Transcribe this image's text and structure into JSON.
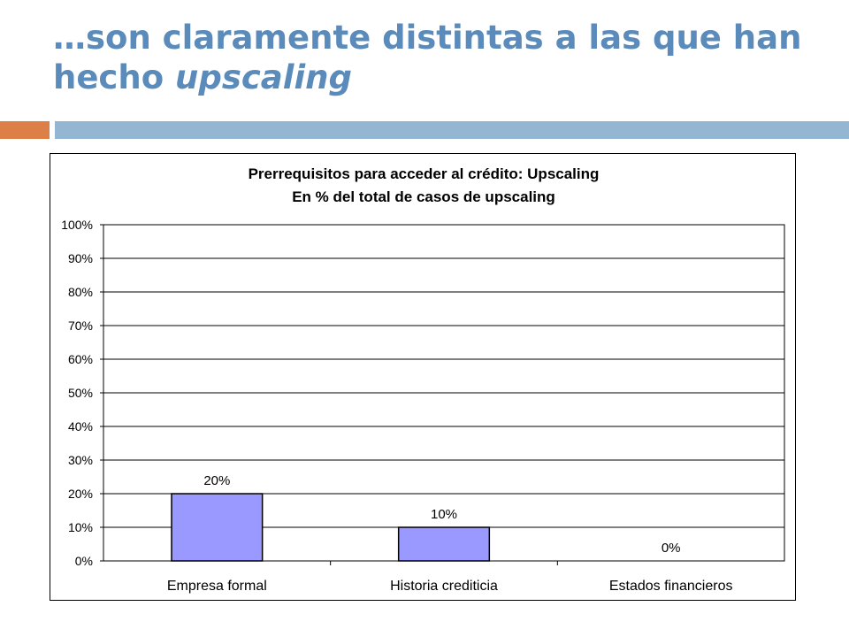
{
  "slide": {
    "title_main": "…son claramente distintas a las que han hecho ",
    "title_em": "upscaling"
  },
  "colors": {
    "title": "#5a8bba",
    "accent_orange": "#dd8047",
    "accent_blue": "#94b6d2",
    "bar_fill": "#9999ff"
  },
  "chart_data": {
    "type": "bar",
    "title": "Prerrequisitos para acceder al crédito: Upscaling",
    "subtitle": "En % del total de casos de upscaling",
    "categories": [
      "Empresa formal",
      "Historia crediticia",
      "Estados financieros"
    ],
    "values": [
      20,
      10,
      0
    ],
    "data_labels": [
      "20%",
      "10%",
      "0%"
    ],
    "y_ticks": [
      "0%",
      "10%",
      "20%",
      "30%",
      "40%",
      "50%",
      "60%",
      "70%",
      "80%",
      "90%",
      "100%"
    ],
    "ylim": [
      0,
      100
    ],
    "grid": true,
    "legend": "none"
  }
}
